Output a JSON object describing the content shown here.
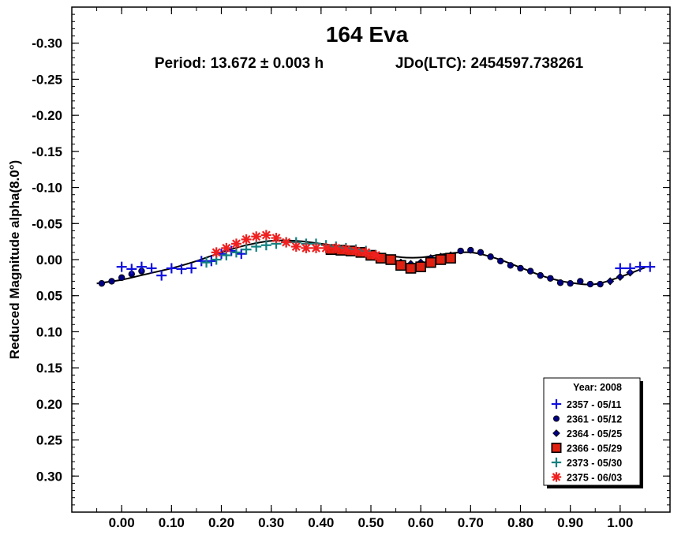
{
  "chart_data": {
    "type": "scatter",
    "title": "164 Eva",
    "subtitle_period": "Period: 13.672 ± 0.003 h",
    "subtitle_epoch": "JDo(LTC): 2454597.738261",
    "xlabel": "",
    "ylabel": "Reduced Magnitude alpha(8.0°)",
    "xlim": [
      -0.1,
      1.1
    ],
    "ylim": [
      -0.35,
      0.35
    ],
    "y_inverted": true,
    "x_ticks": [
      0.0,
      0.1,
      0.2,
      0.3,
      0.4,
      0.5,
      0.6,
      0.7,
      0.8,
      0.9,
      1.0
    ],
    "x_tick_labels": [
      "0.00",
      "0.10",
      "0.20",
      "0.30",
      "0.40",
      "0.50",
      "0.60",
      "0.70",
      "0.80",
      "0.90",
      "1.00"
    ],
    "y_ticks": [
      -0.3,
      -0.25,
      -0.2,
      -0.15,
      -0.1,
      -0.05,
      0.0,
      0.05,
      0.1,
      0.15,
      0.2,
      0.25,
      0.3
    ],
    "y_tick_labels": [
      "-0.30",
      "-0.25",
      "-0.20",
      "-0.15",
      "-0.10",
      "-0.05",
      "0.00",
      "0.05",
      "0.10",
      "0.15",
      "0.20",
      "0.25",
      "0.30"
    ],
    "legend": {
      "title": "Year: 2008",
      "position": "bottom-right",
      "entries": [
        "2357 - 05/11",
        "2361 - 05/12",
        "2364 - 05/25",
        "2366 - 05/29",
        "2373 - 05/30",
        "2375 - 06/03"
      ]
    },
    "fit_curve": {
      "x": [
        -0.05,
        0.0,
        0.05,
        0.1,
        0.15,
        0.2,
        0.25,
        0.3,
        0.35,
        0.4,
        0.45,
        0.5,
        0.55,
        0.6,
        0.65,
        0.7,
        0.75,
        0.8,
        0.85,
        0.9,
        0.95,
        1.0,
        1.05
      ],
      "y": [
        0.033,
        0.028,
        0.02,
        0.012,
        0.002,
        -0.01,
        -0.02,
        -0.026,
        -0.026,
        -0.022,
        -0.017,
        -0.011,
        -0.004,
        -0.003,
        -0.008,
        -0.01,
        -0.002,
        0.011,
        0.024,
        0.032,
        0.034,
        0.024,
        0.011
      ]
    },
    "series": [
      {
        "name": "2357 - 05/11",
        "marker": "plus",
        "color": "#1010e0",
        "x": [
          0.0,
          0.02,
          0.04,
          0.06,
          0.08,
          0.1,
          0.12,
          0.14,
          0.16,
          0.18,
          0.2,
          0.22,
          0.24,
          1.0,
          1.02,
          1.04,
          1.06
        ],
        "y": [
          0.01,
          0.013,
          0.01,
          0.012,
          0.022,
          0.012,
          0.013,
          0.012,
          0.002,
          0.002,
          -0.008,
          -0.012,
          -0.008,
          0.012,
          0.012,
          0.01,
          0.01
        ]
      },
      {
        "name": "2361 - 05/12",
        "marker": "circle",
        "color": "#000080",
        "x": [
          -0.04,
          -0.02,
          0.0,
          0.02,
          0.04,
          0.68,
          0.7,
          0.72,
          0.74,
          0.76,
          0.78,
          0.8,
          0.82,
          0.84,
          0.86,
          0.88,
          0.9,
          0.92,
          0.94,
          0.96
        ],
        "y": [
          0.033,
          0.03,
          0.025,
          0.02,
          0.016,
          -0.012,
          -0.013,
          -0.01,
          -0.004,
          0.002,
          0.008,
          0.012,
          0.016,
          0.022,
          0.026,
          0.032,
          0.033,
          0.03,
          0.034,
          0.034
        ]
      },
      {
        "name": "2364 - 05/25",
        "marker": "diamond",
        "color": "#000080",
        "x": [
          0.42,
          0.44,
          0.46,
          0.48,
          0.5,
          0.52,
          0.54,
          0.56,
          0.58,
          0.6,
          0.62,
          0.64,
          0.66,
          0.98,
          1.0,
          1.02
        ],
        "y": [
          -0.016,
          -0.014,
          -0.012,
          -0.01,
          -0.006,
          -0.002,
          0.0,
          0.004,
          0.006,
          0.004,
          -0.002,
          -0.004,
          -0.006,
          0.03,
          0.024,
          0.018
        ]
      },
      {
        "name": "2366 - 05/29",
        "marker": "square",
        "color": "#e02010",
        "x": [
          0.42,
          0.44,
          0.46,
          0.48,
          0.5,
          0.52,
          0.54,
          0.56,
          0.58,
          0.6,
          0.62,
          0.64,
          0.66
        ],
        "y": [
          -0.014,
          -0.013,
          -0.012,
          -0.01,
          -0.006,
          -0.002,
          0.0,
          0.008,
          0.012,
          0.01,
          0.004,
          0.0,
          -0.002
        ]
      },
      {
        "name": "2373 - 05/30",
        "marker": "plus",
        "color": "#108080",
        "x": [
          0.17,
          0.19,
          0.21,
          0.23,
          0.25,
          0.27,
          0.29,
          0.31,
          0.33,
          0.35,
          0.37,
          0.39,
          0.41,
          0.43,
          0.45,
          0.47,
          0.49
        ],
        "y": [
          0.004,
          0.0,
          -0.006,
          -0.01,
          -0.014,
          -0.018,
          -0.02,
          -0.022,
          -0.024,
          -0.024,
          -0.022,
          -0.022,
          -0.02,
          -0.018,
          -0.016,
          -0.014,
          -0.012
        ]
      },
      {
        "name": "2375 - 06/03",
        "marker": "star",
        "color": "#f02020",
        "x": [
          0.19,
          0.21,
          0.23,
          0.25,
          0.27,
          0.29,
          0.31,
          0.33,
          0.35,
          0.37,
          0.39,
          0.41,
          0.43,
          0.45,
          0.47,
          0.49,
          0.51
        ],
        "y": [
          -0.01,
          -0.016,
          -0.022,
          -0.028,
          -0.032,
          -0.034,
          -0.03,
          -0.024,
          -0.018,
          -0.016,
          -0.016,
          -0.016,
          -0.016,
          -0.014,
          -0.012,
          -0.01,
          -0.006
        ]
      }
    ]
  }
}
